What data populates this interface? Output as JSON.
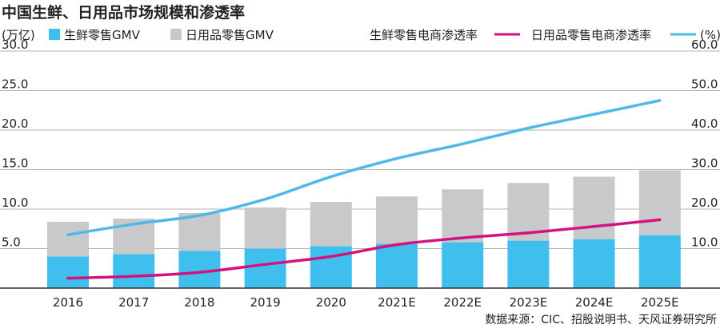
{
  "chart_data": {
    "type": "bar",
    "title": "中国生鲜、日用品市场规模和渗透率",
    "left_unit": "(万亿)",
    "right_unit": "(%)",
    "categories": [
      "2016",
      "2017",
      "2018",
      "2019",
      "2020",
      "2021E",
      "2022E",
      "2023E",
      "2024E",
      "2025E"
    ],
    "series": [
      {
        "name": "生鲜零售GMV",
        "kind": "bar",
        "axis": "left",
        "color": "#3fbfee",
        "values": [
          4.0,
          4.3,
          4.7,
          5.0,
          5.3,
          5.6,
          5.8,
          6.0,
          6.2,
          6.7
        ]
      },
      {
        "name": "日用品零售GMV",
        "kind": "bar",
        "axis": "left",
        "color": "#c8c9cb",
        "values": [
          4.4,
          4.5,
          4.8,
          5.2,
          5.6,
          6.0,
          6.7,
          7.3,
          7.9,
          8.2
        ]
      },
      {
        "name": "生鲜零售电商渗透率",
        "kind": "line",
        "axis": "right",
        "color": "#d4127e",
        "values": [
          2.5,
          3.0,
          4.0,
          6.0,
          8.0,
          11.0,
          12.7,
          14.0,
          15.6,
          17.3
        ]
      },
      {
        "name": "日用品零售电商渗透率",
        "kind": "line",
        "axis": "right",
        "color": "#4cb9ea",
        "values": [
          13.5,
          16.2,
          18.4,
          22.5,
          28.2,
          32.8,
          36.5,
          40.5,
          44.0,
          47.5
        ]
      }
    ],
    "ylim_left": [
      0,
      30
    ],
    "yticks_left": [
      "5.0",
      "10.0",
      "15.0",
      "20.0",
      "25.0",
      "30.0"
    ],
    "ylim_right": [
      0,
      60
    ],
    "yticks_right": [
      "10.0",
      "20.0",
      "30.0",
      "40.0",
      "50.0",
      "60.0"
    ],
    "grid": true,
    "legend": "top",
    "source": "数据来源：CIC、招股说明书、天风证券研究所"
  }
}
